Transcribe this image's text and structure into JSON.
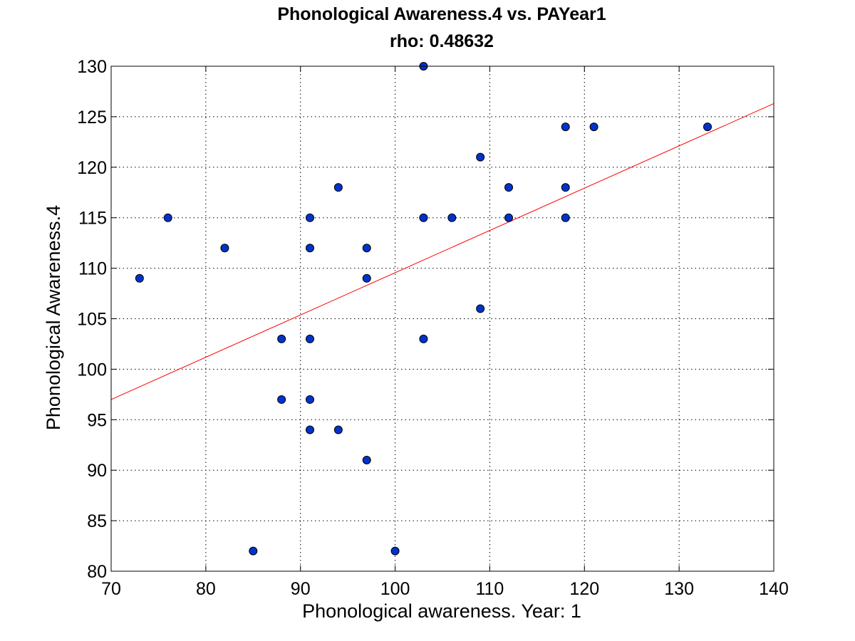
{
  "chart_data": {
    "type": "scatter",
    "title": "Phonological Awareness.4 vs. PAYear1",
    "subtitle": "rho: 0.48632",
    "xlabel": "Phonological awareness. Year: 1",
    "ylabel": "Phonological Awareness.4",
    "xlim": [
      70,
      140
    ],
    "ylim": [
      80,
      130
    ],
    "xticks": [
      "70",
      "80",
      "90",
      "100",
      "110",
      "120",
      "130",
      "140"
    ],
    "yticks": [
      "80",
      "85",
      "90",
      "95",
      "100",
      "105",
      "110",
      "115",
      "120",
      "125",
      "130"
    ],
    "grid": true,
    "point_color": "#0033cc",
    "fit_color": "#ff0000",
    "points": [
      [
        73,
        109
      ],
      [
        76,
        115
      ],
      [
        82,
        112
      ],
      [
        85,
        82
      ],
      [
        88,
        103
      ],
      [
        88,
        97
      ],
      [
        91,
        115
      ],
      [
        91,
        112
      ],
      [
        91,
        103
      ],
      [
        91,
        97
      ],
      [
        91,
        94
      ],
      [
        94,
        118
      ],
      [
        94,
        94
      ],
      [
        97,
        112
      ],
      [
        97,
        109
      ],
      [
        97,
        91
      ],
      [
        100,
        82
      ],
      [
        103,
        130
      ],
      [
        103,
        115
      ],
      [
        103,
        103
      ],
      [
        106,
        115
      ],
      [
        109,
        121
      ],
      [
        109,
        106
      ],
      [
        112,
        118
      ],
      [
        112,
        115
      ],
      [
        118,
        124
      ],
      [
        118,
        118
      ],
      [
        118,
        115
      ],
      [
        121,
        124
      ],
      [
        133,
        124
      ]
    ],
    "fit_line": {
      "x": [
        70,
        140
      ],
      "y": [
        97.0,
        126.3
      ]
    }
  }
}
